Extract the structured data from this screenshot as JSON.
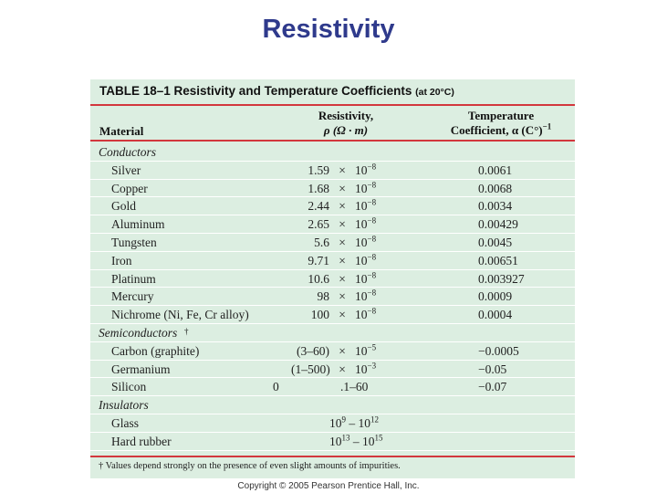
{
  "slide": {
    "title": "Resistivity",
    "copyright": "Copyright © 2005 Pearson Prentice Hall, Inc."
  },
  "table": {
    "caption": "TABLE 18–1  Resistivity and Temperature Coefficients",
    "caption_sub": "(at 20°C)",
    "headers": {
      "material": "Material",
      "res_line1": "Resistivity,",
      "res_line2": "ρ (Ω · m)",
      "coef_line1": "Temperature",
      "coef_line2": "Coefficient, α (C°)",
      "coef_exp": "−1"
    },
    "rows": [
      {
        "type": "section",
        "material": "Conductors"
      },
      {
        "type": "data",
        "material": "Silver",
        "res_num": "1.59",
        "res_x": "×",
        "res_base": "10",
        "res_exp": "−8",
        "coef": "0.0061"
      },
      {
        "type": "data",
        "material": "Copper",
        "res_num": "1.68",
        "res_x": "×",
        "res_base": "10",
        "res_exp": "−8",
        "coef": "0.0068"
      },
      {
        "type": "data",
        "material": "Gold",
        "res_num": "2.44",
        "res_x": "×",
        "res_base": "10",
        "res_exp": "−8",
        "coef": "0.0034"
      },
      {
        "type": "data",
        "material": "Aluminum",
        "res_num": "2.65",
        "res_x": "×",
        "res_base": "10",
        "res_exp": "−8",
        "coef": "0.00429"
      },
      {
        "type": "data",
        "material": "Tungsten",
        "res_num": "5.6",
        "res_x": "×",
        "res_base": "10",
        "res_exp": "−8",
        "coef": "0.0045"
      },
      {
        "type": "data",
        "material": "Iron",
        "res_num": "9.71",
        "res_x": "×",
        "res_base": "10",
        "res_exp": "−8",
        "coef": "0.00651"
      },
      {
        "type": "data",
        "material": "Platinum",
        "res_num": "10.6",
        "res_x": "×",
        "res_base": "10",
        "res_exp": "−8",
        "coef": "0.003927"
      },
      {
        "type": "data",
        "material": "Mercury",
        "res_num": "98",
        "res_x": "×",
        "res_base": "10",
        "res_exp": "−8",
        "coef": "0.0009"
      },
      {
        "type": "data",
        "material": "Nichrome (Ni, Fe, Cr alloy)",
        "res_num": "100",
        "res_x": "×",
        "res_base": "10",
        "res_exp": "−8",
        "coef": "0.0004"
      },
      {
        "type": "section",
        "material": "Semiconductors",
        "mark": "†"
      },
      {
        "type": "data",
        "material": "Carbon (graphite)",
        "res_num": "(3–60)",
        "res_x": "×",
        "res_base": "10",
        "res_exp": "−5",
        "coef": "−0.0005"
      },
      {
        "type": "data",
        "material": "Germanium",
        "res_num": "(1–500)",
        "res_x": "×",
        "res_base": "10",
        "res_exp": "−3",
        "coef": "−0.05"
      },
      {
        "type": "data",
        "material": "Silicon",
        "res_pre": "0",
        "res_text": ".1–60",
        "coef": "−0.07"
      },
      {
        "type": "section",
        "material": "Insulators"
      },
      {
        "type": "data",
        "material": "Glass",
        "res_a": "10",
        "res_a_exp": "9",
        "res_b": "10",
        "res_b_exp": "12",
        "res_dash": "–",
        "coef": ""
      },
      {
        "type": "data",
        "material": "Hard rubber",
        "res_a": "10",
        "res_a_exp": "13",
        "res_b": "10",
        "res_b_exp": "15",
        "res_dash": "–",
        "coef": ""
      }
    ],
    "footnote": "† Values depend strongly on the presence of even slight amounts of impurities."
  }
}
